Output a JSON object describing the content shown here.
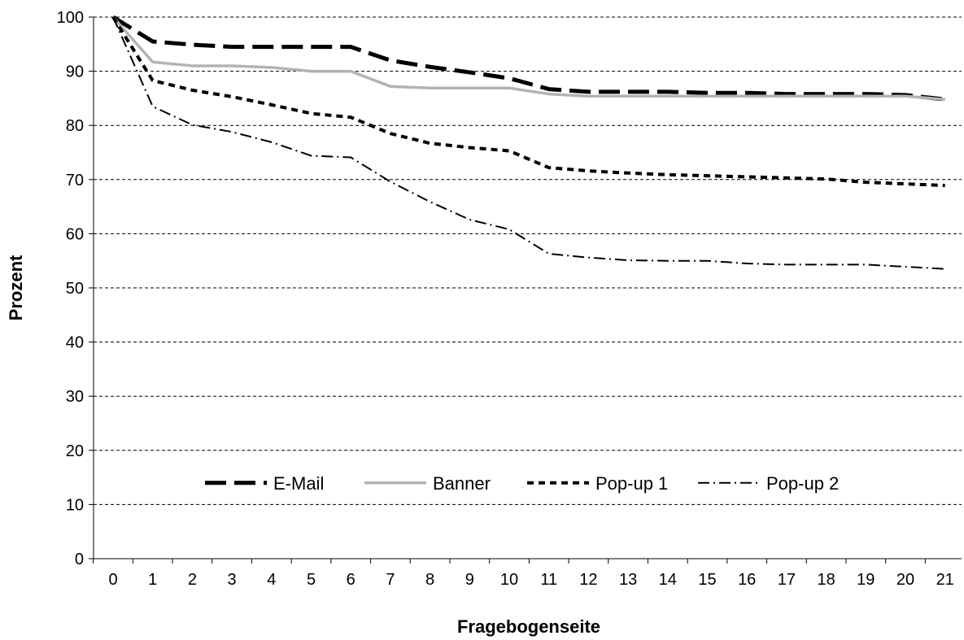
{
  "chart_data": {
    "type": "line",
    "title": "",
    "xlabel": "Fragebogenseite",
    "ylabel": "Prozent",
    "x": [
      0,
      1,
      2,
      3,
      4,
      5,
      6,
      7,
      8,
      9,
      10,
      11,
      12,
      13,
      14,
      15,
      16,
      17,
      18,
      19,
      20,
      21
    ],
    "ylim": [
      0,
      100
    ],
    "yticks": [
      0,
      10,
      20,
      30,
      40,
      50,
      60,
      70,
      80,
      90,
      100
    ],
    "grid": "horizontal-dashed",
    "legend_position": "inside-lower-center",
    "series": [
      {
        "name": "E-Mail",
        "style": "long-dash",
        "color": "#000000",
        "values": [
          100,
          95.5,
          94.9,
          94.5,
          94.5,
          94.5,
          94.5,
          92,
          90.8,
          89.8,
          88.7,
          86.7,
          86.2,
          86.2,
          86.2,
          86,
          86,
          85.8,
          85.8,
          85.8,
          85.6,
          84.8
        ]
      },
      {
        "name": "Banner",
        "style": "solid",
        "color": "#b3b3b3",
        "values": [
          100,
          91.7,
          91,
          91,
          90.7,
          90,
          90,
          87.2,
          86.9,
          86.9,
          86.9,
          85.8,
          85.4,
          85.4,
          85.4,
          85.4,
          85.4,
          85.4,
          85.4,
          85.4,
          85.4,
          84.8
        ]
      },
      {
        "name": "Pop-up 1",
        "style": "short-dash",
        "color": "#000000",
        "values": [
          100,
          88.3,
          86.5,
          85.3,
          83.8,
          82.2,
          81.5,
          78.5,
          76.7,
          75.9,
          75.3,
          72.2,
          71.6,
          71.2,
          70.9,
          70.7,
          70.5,
          70.3,
          70.1,
          69.5,
          69.2,
          68.9
        ]
      },
      {
        "name": "Pop-up 2",
        "style": "dash-dot",
        "color": "#000000",
        "values": [
          100,
          83.5,
          80.1,
          78.8,
          76.9,
          74.4,
          74.1,
          69.6,
          65.9,
          62.6,
          60.8,
          56.3,
          55.6,
          55.1,
          55,
          55,
          54.5,
          54.3,
          54.3,
          54.3,
          53.9,
          53.5
        ]
      }
    ]
  }
}
